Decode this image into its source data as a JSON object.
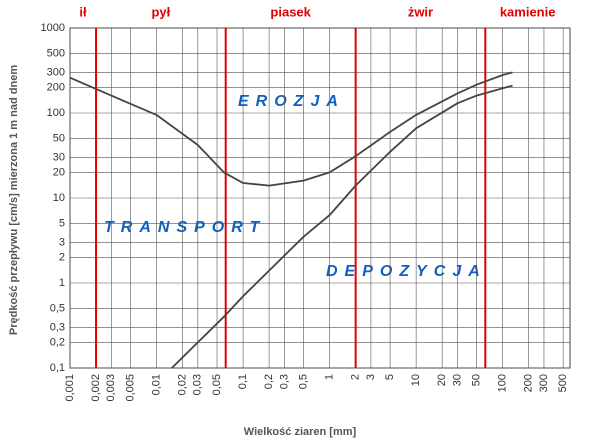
{
  "chart_data": {
    "type": "line",
    "x_label": "Wielkość ziaren [mm]",
    "y_label": "Prędkość przepływu [cm/s] mierzona 1 m nad dnem",
    "log_x": true,
    "log_y": true,
    "grid": true,
    "xlim": [
      0.001,
      600
    ],
    "ylim": [
      0.1,
      1000
    ],
    "xticks": [
      {
        "value": 0.001,
        "label": "0,001"
      },
      {
        "value": 0.002,
        "label": "0,002"
      },
      {
        "value": 0.003,
        "label": "0,003"
      },
      {
        "value": 0.005,
        "label": "0,005"
      },
      {
        "value": 0.01,
        "label": "0,01"
      },
      {
        "value": 0.02,
        "label": "0,02"
      },
      {
        "value": 0.03,
        "label": "0,03"
      },
      {
        "value": 0.05,
        "label": "0,05"
      },
      {
        "value": 0.1,
        "label": "0,1"
      },
      {
        "value": 0.2,
        "label": "0,2"
      },
      {
        "value": 0.3,
        "label": "0,3"
      },
      {
        "value": 0.5,
        "label": "0,5"
      },
      1,
      2,
      3,
      5,
      10,
      20,
      30,
      50,
      100,
      200,
      300,
      500
    ],
    "yticks": [
      {
        "value": 0.1,
        "label": "0,1"
      },
      {
        "value": 0.2,
        "label": "0,2"
      },
      {
        "value": 0.3,
        "label": "0,3"
      },
      {
        "value": 0.5,
        "label": "0,5"
      },
      1,
      2,
      3,
      5,
      10,
      20,
      30,
      50,
      100,
      200,
      300,
      500,
      1000
    ],
    "zones": [
      "ił",
      "pył",
      "piasek",
      "żwir",
      "kamienie"
    ],
    "zone_boundaries": [
      0.002,
      0.063,
      2,
      63
    ],
    "boundary_color": "#e00000",
    "annotations": [
      "EROZJA",
      "TRANSPORT",
      "DEPOZYCJA"
    ],
    "series": [
      {
        "color": "#444444",
        "x": [
          0.001,
          0.003,
          0.01,
          0.03,
          0.06,
          0.1,
          0.2,
          0.5,
          1,
          2,
          5,
          10,
          30,
          50,
          100,
          130
        ],
        "values": [
          260,
          160,
          95,
          42,
          20,
          15,
          14,
          16,
          20,
          31,
          60,
          95,
          170,
          215,
          280,
          300
        ]
      },
      {
        "color": "#444444",
        "x": [
          0.015,
          0.03,
          0.06,
          0.1,
          0.2,
          0.5,
          1,
          2,
          5,
          10,
          30,
          50,
          100,
          130
        ],
        "values": [
          0.1,
          0.2,
          0.4,
          0.7,
          1.4,
          3.5,
          6.3,
          14,
          35,
          66,
          130,
          160,
          196,
          210
        ]
      }
    ]
  }
}
